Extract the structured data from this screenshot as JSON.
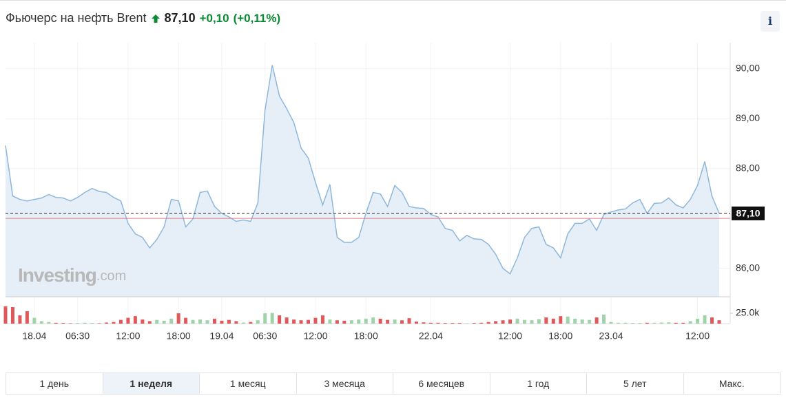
{
  "header": {
    "title": "Фьючерс на нефть Brent",
    "price": "87,10",
    "change": "+0,10",
    "change_pct": "(+0,11%)",
    "info": "i"
  },
  "chart_data": {
    "type": "line",
    "watermark": [
      "Investing",
      ".com"
    ],
    "categories": [
      null,
      null,
      null,
      null,
      "18.04",
      null,
      null,
      null,
      null,
      null,
      "06:30",
      null,
      null,
      null,
      null,
      null,
      null,
      "12:00",
      null,
      null,
      null,
      null,
      null,
      null,
      "18:00",
      null,
      null,
      null,
      null,
      null,
      "19.04",
      null,
      null,
      null,
      null,
      null,
      "06:30",
      null,
      null,
      null,
      null,
      null,
      null,
      "12:00",
      null,
      null,
      null,
      null,
      null,
      null,
      "18:00",
      null,
      null,
      null,
      null,
      null,
      null,
      null,
      null,
      "22.04",
      null,
      null,
      null,
      null,
      null,
      null,
      null,
      null,
      null,
      null,
      "12:00",
      null,
      null,
      null,
      null,
      null,
      null,
      "18:00",
      null,
      null,
      null,
      null,
      null,
      null,
      "23.04",
      null,
      null,
      null,
      null,
      null,
      null,
      null,
      null,
      null,
      null,
      null,
      "12:00",
      null,
      null,
      null
    ],
    "series": [
      {
        "name": "Brent",
        "color": "#8db7dc",
        "fill": "#e6eef7",
        "values": [
          88.46,
          87.45,
          87.38,
          87.35,
          87.38,
          87.41,
          87.48,
          87.42,
          87.41,
          87.35,
          87.42,
          87.52,
          87.6,
          87.54,
          87.52,
          87.42,
          87.35,
          86.9,
          86.69,
          86.62,
          86.41,
          86.58,
          86.83,
          87.38,
          87.35,
          86.83,
          86.99,
          87.52,
          87.55,
          87.24,
          87.1,
          87.03,
          86.94,
          86.97,
          86.94,
          87.31,
          89.17,
          90.07,
          89.45,
          89.2,
          88.92,
          88.41,
          88.21,
          87.72,
          87.27,
          87.68,
          86.62,
          86.52,
          86.52,
          86.62,
          87.1,
          87.52,
          87.49,
          87.24,
          87.66,
          87.52,
          87.24,
          87.21,
          87.2,
          87.08,
          87.03,
          86.8,
          86.76,
          86.55,
          86.66,
          86.59,
          86.58,
          86.48,
          86.28,
          86.0,
          85.89,
          86.21,
          86.62,
          86.8,
          86.83,
          86.48,
          86.41,
          86.21,
          86.69,
          86.9,
          86.9,
          86.99,
          86.76,
          87.08,
          87.13,
          87.17,
          87.19,
          87.31,
          87.38,
          87.1,
          87.3,
          87.31,
          87.41,
          87.27,
          87.21,
          87.38,
          87.66,
          88.14,
          87.45,
          87.1
        ]
      }
    ],
    "volume": {
      "values": [
        42000,
        40000,
        20000,
        30000,
        14000,
        6000,
        4000,
        2000,
        1500,
        1000,
        1500,
        2000,
        1500,
        1000,
        2500,
        4000,
        9000,
        14000,
        18000,
        10000,
        6000,
        9000,
        7000,
        12000,
        25000,
        14000,
        9000,
        10000,
        8000,
        12000,
        7000,
        9000,
        6000,
        2500,
        4000,
        8000,
        25000,
        26000,
        20000,
        15000,
        10000,
        8000,
        9000,
        14000,
        20000,
        10000,
        8000,
        7000,
        8000,
        10000,
        12000,
        15000,
        12000,
        9000,
        10000,
        8000,
        13000,
        5000,
        3000,
        2000,
        2000,
        1500,
        1500,
        1500,
        1000,
        1500,
        2000,
        4000,
        6000,
        8000,
        10000,
        12000,
        9000,
        8000,
        11000,
        15000,
        12000,
        18000,
        17000,
        12000,
        10000,
        9000,
        15000,
        22000,
        4000,
        2000,
        2000,
        1500,
        1500,
        2000,
        2000,
        2500,
        3000,
        2000,
        2000,
        6000,
        12000,
        20000,
        15000,
        8000
      ],
      "up_color": "#9fd4a9",
      "down_color": "#e0585a",
      "vlim": [
        0,
        50000
      ],
      "vticks": [
        {
          "value": 25000,
          "label": "25.0k"
        }
      ]
    },
    "ylim": [
      85.43,
      90.52
    ],
    "yticks": [
      {
        "value": 86,
        "label": "86,00"
      },
      {
        "value": 88,
        "label": "88,00"
      },
      {
        "value": 89,
        "label": "89,00"
      },
      {
        "value": 90,
        "label": "90,00"
      }
    ],
    "current_price": 87.1,
    "current_label": "87,10",
    "prev_close": 87.0,
    "grid": true
  },
  "periods": {
    "items": [
      "1 день",
      "1 неделя",
      "1 месяц",
      "3 месяца",
      "6 месяцев",
      "1 год",
      "5 лет",
      "Макс."
    ],
    "active": 1
  }
}
